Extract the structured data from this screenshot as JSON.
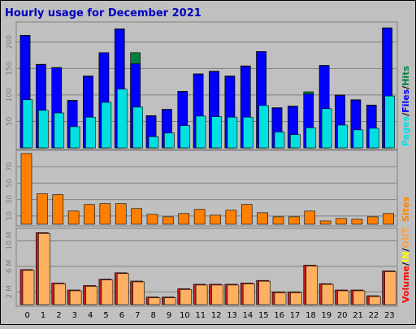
{
  "chart_title": "Hourly usage for December 2021",
  "colors": {
    "background": "#c0c0c0",
    "panel": "#c0c0c0",
    "title": "#0000c0",
    "hits": "#008040",
    "files": "#0000ff",
    "pages": "#00e0e0",
    "sites": "#ff8000",
    "volume": "#ff0000",
    "in": "#ffff00",
    "out": "#ffa040",
    "volume_bar": "#ffb060",
    "volume_shadow": "#c02020"
  },
  "chart_data": [
    {
      "type": "bar",
      "panel": "top",
      "categories": [
        "0",
        "1",
        "2",
        "3",
        "4",
        "5",
        "6",
        "7",
        "8",
        "9",
        "10",
        "11",
        "12",
        "13",
        "14",
        "15",
        "16",
        "17",
        "18",
        "19",
        "20",
        "21",
        "22",
        "23"
      ],
      "series": [
        {
          "name": "Hits",
          "values": [
            213,
            158,
            152,
            90,
            136,
            180,
            225,
            180,
            61,
            73,
            107,
            140,
            145,
            136,
            155,
            182,
            76,
            79,
            106,
            156,
            100,
            91,
            81,
            227
          ]
        },
        {
          "name": "Files",
          "values": [
            212,
            157,
            151,
            89,
            135,
            180,
            224,
            159,
            60,
            72,
            106,
            139,
            144,
            135,
            154,
            182,
            75,
            78,
            102,
            155,
            99,
            90,
            80,
            226
          ]
        },
        {
          "name": "Pages",
          "values": [
            91,
            71,
            66,
            40,
            58,
            86,
            111,
            77,
            21,
            28,
            42,
            60,
            59,
            58,
            58,
            80,
            30,
            25,
            38,
            74,
            43,
            34,
            37,
            98
          ]
        }
      ],
      "ylim": [
        0,
        235
      ],
      "yticks": [
        50,
        100,
        150,
        200
      ],
      "legend": [
        "Pages",
        "Files",
        "Hits"
      ]
    },
    {
      "type": "bar",
      "panel": "middle",
      "categories": [
        "0",
        "1",
        "2",
        "3",
        "4",
        "5",
        "6",
        "7",
        "8",
        "9",
        "10",
        "11",
        "12",
        "13",
        "14",
        "15",
        "16",
        "17",
        "18",
        "19",
        "20",
        "21",
        "22",
        "23"
      ],
      "series": [
        {
          "name": "Sites",
          "values": [
            86,
            37,
            36,
            16,
            24,
            25,
            25,
            19,
            12,
            9,
            13,
            18,
            11,
            17,
            24,
            14,
            9,
            9,
            16,
            4,
            7,
            6,
            9,
            13
          ]
        }
      ],
      "ylim": [
        0,
        88
      ],
      "yticks": [
        10,
        30,
        50,
        70
      ],
      "legend": [
        "Sites"
      ]
    },
    {
      "type": "bar",
      "panel": "bottom",
      "categories": [
        "0",
        "1",
        "2",
        "3",
        "4",
        "5",
        "6",
        "7",
        "8",
        "9",
        "10",
        "11",
        "12",
        "13",
        "14",
        "15",
        "16",
        "17",
        "18",
        "19",
        "20",
        "21",
        "22",
        "23"
      ],
      "series": [
        {
          "name": "Volume",
          "values": [
            5.5,
            11.3,
            3.4,
            2.3,
            3.0,
            4.0,
            5.0,
            3.7,
            1.2,
            1.2,
            2.5,
            3.2,
            3.2,
            3.2,
            3.4,
            3.8,
            2.0,
            2.0,
            6.2,
            3.3,
            2.3,
            2.3,
            1.4,
            5.3
          ]
        }
      ],
      "ylim": [
        0,
        11.6
      ],
      "yticks": [
        2,
        6,
        10
      ],
      "ytick_labels": [
        "2 M",
        "6 M",
        "10 M"
      ],
      "legend": [
        "Volume",
        "IN",
        "OUT"
      ]
    }
  ],
  "x_tick_labels": [
    "0",
    "1",
    "2",
    "3",
    "4",
    "5",
    "6",
    "7",
    "8",
    "9",
    "10",
    "11",
    "12",
    "13",
    "14",
    "15",
    "16",
    "17",
    "18",
    "19",
    "20",
    "21",
    "22",
    "23"
  ],
  "legend_separator": "/"
}
